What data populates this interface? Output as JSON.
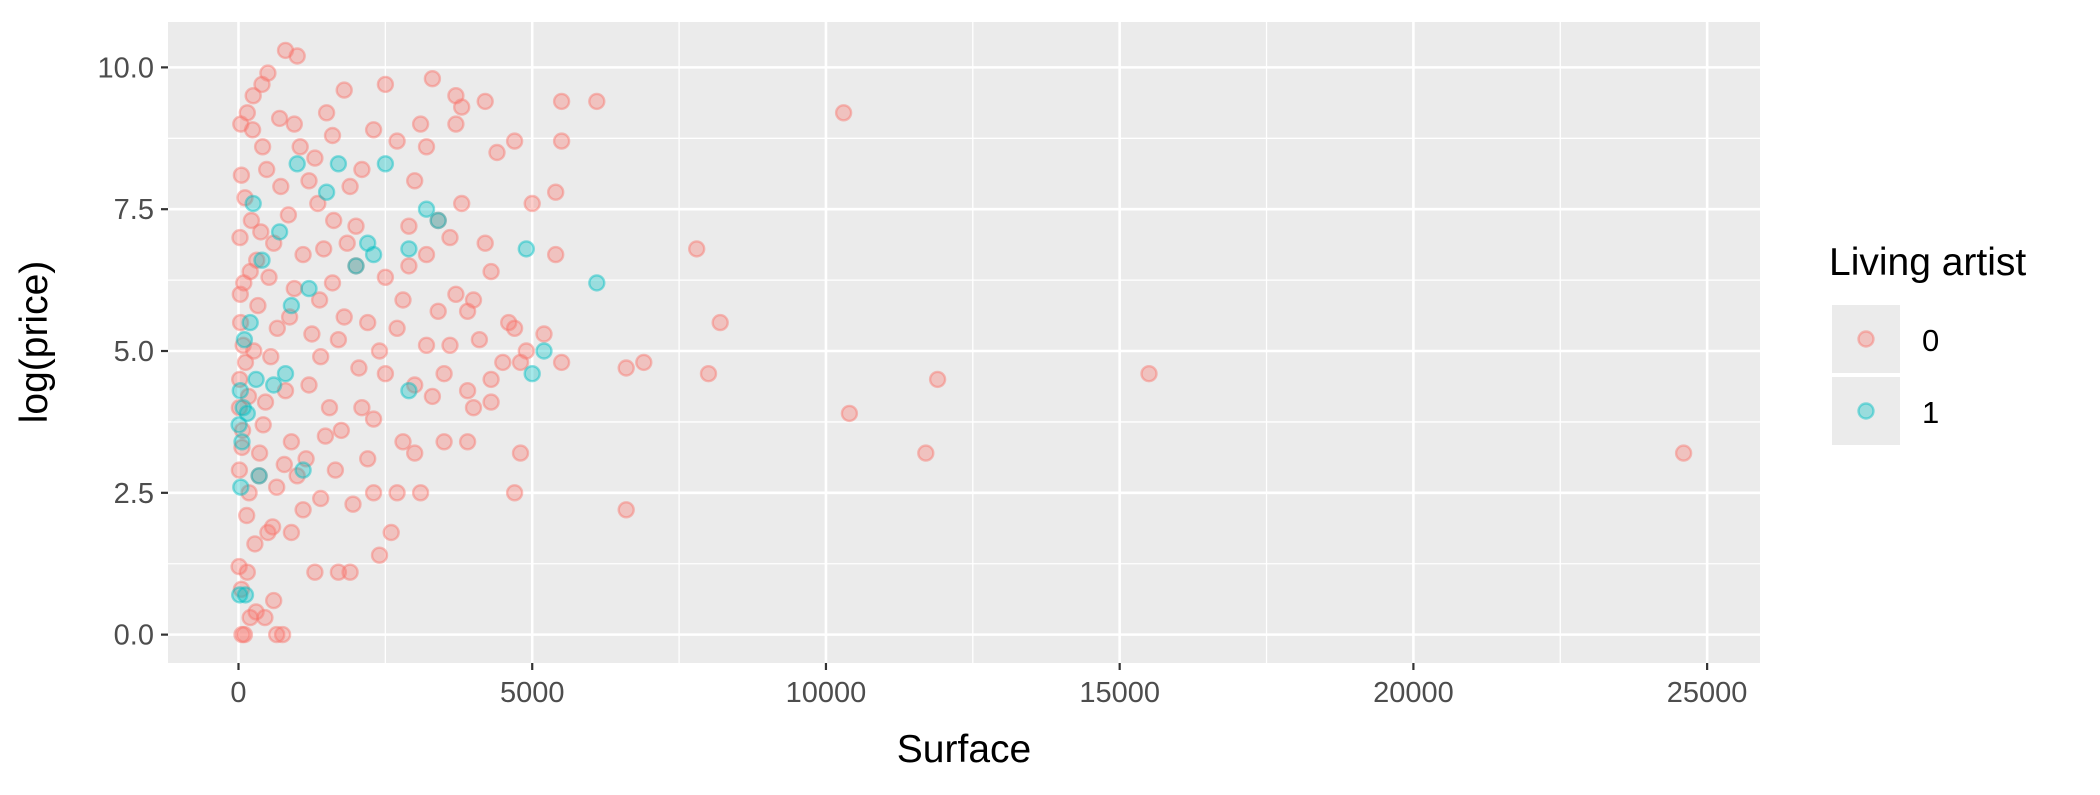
{
  "chart_data": {
    "type": "scatter",
    "title": "",
    "xlabel": "Surface",
    "ylabel": "log(price)",
    "xlim": [
      -1200,
      25900
    ],
    "ylim": [
      -0.5,
      10.8
    ],
    "x_ticks": [
      0,
      5000,
      10000,
      15000,
      20000,
      25000
    ],
    "x_tick_labels": [
      "0",
      "5000",
      "10000",
      "15000",
      "20000",
      "25000"
    ],
    "y_ticks": [
      0,
      2.5,
      5,
      7.5,
      10
    ],
    "y_tick_labels": [
      "0.0",
      "2.5",
      "5.0",
      "7.5",
      "10.0"
    ],
    "grid": true,
    "legend": {
      "title": "Living artist",
      "position": "right",
      "entries": [
        {
          "label": "0",
          "color": "#F8766D"
        },
        {
          "label": "1",
          "color": "#00BFC4"
        }
      ]
    },
    "colors": {
      "panel_bg": "#EBEBEB",
      "grid": "#FFFFFF",
      "series_0": "#F8766D",
      "series_1": "#00BFC4"
    },
    "series": [
      {
        "name": "0",
        "color": "#F8766D",
        "points": [
          [
            10300,
            9.2
          ],
          [
            24600,
            3.2
          ],
          [
            15500,
            4.6
          ],
          [
            11900,
            4.5
          ],
          [
            11700,
            3.2
          ],
          [
            10400,
            3.9
          ],
          [
            8200,
            5.5
          ],
          [
            7800,
            6.8
          ],
          [
            8000,
            4.6
          ],
          [
            6900,
            4.8
          ],
          [
            6600,
            4.7
          ],
          [
            6600,
            2.2
          ],
          [
            6100,
            9.4
          ],
          [
            5500,
            9.4
          ],
          [
            5500,
            8.7
          ],
          [
            5400,
            7.8
          ],
          [
            5500,
            4.8
          ],
          [
            5400,
            6.7
          ],
          [
            5000,
            7.6
          ],
          [
            5200,
            5.3
          ],
          [
            4900,
            5.0
          ],
          [
            4700,
            8.7
          ],
          [
            4800,
            4.8
          ],
          [
            4700,
            5.4
          ],
          [
            4700,
            2.5
          ],
          [
            4800,
            3.2
          ],
          [
            4600,
            5.5
          ],
          [
            4500,
            4.8
          ],
          [
            4400,
            8.5
          ],
          [
            4300,
            6.4
          ],
          [
            4300,
            4.5
          ],
          [
            4300,
            4.1
          ],
          [
            4200,
            9.4
          ],
          [
            4100,
            5.2
          ],
          [
            4000,
            4.0
          ],
          [
            3900,
            5.7
          ],
          [
            3900,
            3.4
          ],
          [
            3800,
            9.3
          ],
          [
            3700,
            9.5
          ],
          [
            3700,
            9.0
          ],
          [
            3600,
            7.0
          ],
          [
            3700,
            6.0
          ],
          [
            3500,
            4.6
          ],
          [
            3500,
            3.4
          ],
          [
            3400,
            7.3
          ],
          [
            3400,
            5.7
          ],
          [
            3300,
            9.8
          ],
          [
            3200,
            8.6
          ],
          [
            3200,
            5.1
          ],
          [
            3100,
            9.0
          ],
          [
            3100,
            2.5
          ],
          [
            3000,
            8.0
          ],
          [
            3000,
            4.4
          ],
          [
            2900,
            6.5
          ],
          [
            2800,
            3.4
          ],
          [
            2700,
            8.7
          ],
          [
            2700,
            5.4
          ],
          [
            2700,
            2.5
          ],
          [
            2600,
            1.8
          ],
          [
            2500,
            9.7
          ],
          [
            2500,
            4.6
          ],
          [
            2400,
            1.4
          ],
          [
            2300,
            8.9
          ],
          [
            2300,
            2.5
          ],
          [
            2200,
            5.5
          ],
          [
            2100,
            4.0
          ],
          [
            2000,
            7.2
          ],
          [
            1900,
            1.1
          ],
          [
            1800,
            9.6
          ],
          [
            1700,
            1.1
          ],
          [
            1600,
            6.2
          ],
          [
            1500,
            9.2
          ],
          [
            1400,
            4.9
          ],
          [
            1300,
            1.1
          ],
          [
            1200,
            8.0
          ],
          [
            1100,
            2.2
          ],
          [
            1000,
            10.2
          ],
          [
            900,
            3.4
          ],
          [
            800,
            10.3
          ],
          [
            750,
            0.0
          ],
          [
            650,
            0.0
          ],
          [
            600,
            0.6
          ],
          [
            500,
            9.9
          ],
          [
            500,
            1.8
          ],
          [
            450,
            0.3
          ],
          [
            400,
            9.7
          ],
          [
            350,
            2.8
          ],
          [
            300,
            0.4
          ],
          [
            250,
            9.5
          ],
          [
            200,
            0.3
          ],
          [
            150,
            1.1
          ],
          [
            100,
            0.0
          ],
          [
            50,
            0.8
          ],
          [
            60,
            0.0
          ],
          [
            2200,
            3.1
          ],
          [
            2000,
            6.5
          ],
          [
            1900,
            7.9
          ],
          [
            1800,
            5.6
          ],
          [
            1750,
            3.6
          ],
          [
            1650,
            2.9
          ],
          [
            1600,
            8.8
          ],
          [
            1550,
            4.0
          ],
          [
            1450,
            6.8
          ],
          [
            1400,
            2.4
          ],
          [
            1350,
            7.6
          ],
          [
            1250,
            5.3
          ],
          [
            1150,
            3.1
          ],
          [
            1050,
            8.6
          ],
          [
            950,
            6.1
          ],
          [
            900,
            1.8
          ],
          [
            850,
            7.4
          ],
          [
            800,
            4.3
          ],
          [
            700,
            9.1
          ],
          [
            650,
            2.6
          ],
          [
            600,
            6.9
          ],
          [
            550,
            4.9
          ],
          [
            480,
            8.2
          ],
          [
            420,
            3.7
          ],
          [
            380,
            7.1
          ],
          [
            330,
            5.8
          ],
          [
            280,
            1.6
          ],
          [
            240,
            8.9
          ],
          [
            200,
            6.4
          ],
          [
            170,
            4.2
          ],
          [
            140,
            2.1
          ],
          [
            110,
            7.7
          ],
          [
            80,
            5.1
          ],
          [
            60,
            3.3
          ],
          [
            40,
            9.0
          ],
          [
            30,
            6.0
          ],
          [
            20,
            4.5
          ],
          [
            15,
            2.9
          ],
          [
            10,
            1.2
          ],
          [
            2500,
            6.3
          ],
          [
            2400,
            5.0
          ],
          [
            2300,
            3.8
          ],
          [
            2100,
            8.2
          ],
          [
            2050,
            4.7
          ],
          [
            1950,
            2.3
          ],
          [
            1850,
            6.9
          ],
          [
            1700,
            5.2
          ],
          [
            1620,
            7.3
          ],
          [
            1480,
            3.5
          ],
          [
            1380,
            5.9
          ],
          [
            1300,
            8.4
          ],
          [
            1200,
            4.4
          ],
          [
            1100,
            6.7
          ],
          [
            1000,
            2.8
          ],
          [
            950,
            9.0
          ],
          [
            870,
            5.6
          ],
          [
            780,
            3.0
          ],
          [
            720,
            7.9
          ],
          [
            660,
            5.4
          ],
          [
            580,
            1.9
          ],
          [
            520,
            6.3
          ],
          [
            460,
            4.1
          ],
          [
            410,
            8.6
          ],
          [
            360,
            3.2
          ],
          [
            310,
            6.6
          ],
          [
            260,
            5.0
          ],
          [
            220,
            7.3
          ],
          [
            180,
            2.5
          ],
          [
            150,
            9.2
          ],
          [
            120,
            4.8
          ],
          [
            90,
            6.2
          ],
          [
            70,
            3.6
          ],
          [
            50,
            8.1
          ],
          [
            35,
            5.5
          ],
          [
            25,
            7.0
          ],
          [
            15,
            4.0
          ],
          [
            2900,
            7.2
          ],
          [
            2800,
            5.9
          ],
          [
            3000,
            3.2
          ],
          [
            3200,
            6.7
          ],
          [
            3300,
            4.2
          ],
          [
            3600,
            5.1
          ],
          [
            3800,
            7.6
          ],
          [
            4000,
            5.9
          ],
          [
            4200,
            6.9
          ],
          [
            3900,
            4.3
          ]
        ]
      },
      {
        "name": "1",
        "color": "#00BFC4",
        "points": [
          [
            4900,
            6.8
          ],
          [
            6100,
            6.2
          ],
          [
            5200,
            5.0
          ],
          [
            5000,
            4.6
          ],
          [
            3400,
            7.3
          ],
          [
            3200,
            7.5
          ],
          [
            2900,
            6.8
          ],
          [
            2900,
            4.3
          ],
          [
            2500,
            8.3
          ],
          [
            2300,
            6.7
          ],
          [
            2200,
            6.9
          ],
          [
            2000,
            6.5
          ],
          [
            1700,
            8.3
          ],
          [
            1500,
            7.8
          ],
          [
            1200,
            6.1
          ],
          [
            1100,
            2.9
          ],
          [
            1000,
            8.3
          ],
          [
            900,
            5.8
          ],
          [
            800,
            4.6
          ],
          [
            700,
            7.1
          ],
          [
            600,
            4.4
          ],
          [
            400,
            6.6
          ],
          [
            300,
            4.5
          ],
          [
            250,
            7.6
          ],
          [
            200,
            5.5
          ],
          [
            150,
            3.9
          ],
          [
            100,
            5.2
          ],
          [
            80,
            4.0
          ],
          [
            60,
            3.4
          ],
          [
            40,
            2.6
          ],
          [
            30,
            4.3
          ],
          [
            20,
            0.7
          ],
          [
            10,
            3.7
          ],
          [
            120,
            0.7
          ],
          [
            350,
            2.8
          ]
        ]
      }
    ]
  }
}
